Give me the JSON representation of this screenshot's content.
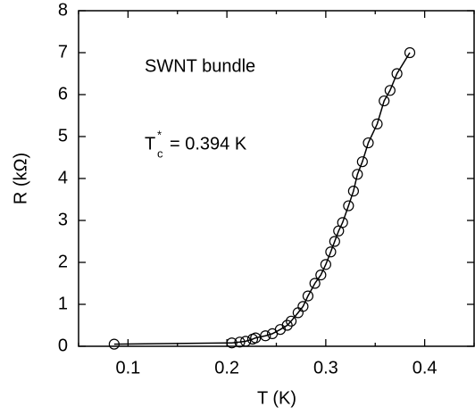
{
  "chart_data": {
    "type": "scatter",
    "x_label": "T (K)",
    "y_label": "R (kΩ)",
    "annotation": "SWNT bundle",
    "tc_label": {
      "symbol": "T",
      "subscript": "c",
      "superscript": "*",
      "text": "= 0.394 K"
    },
    "xlim": [
      0.05,
      0.45
    ],
    "ylim": [
      0,
      8
    ],
    "xticks": [
      0.1,
      0.2,
      0.3,
      0.4
    ],
    "yticks": [
      0,
      1,
      2,
      3,
      4,
      5,
      6,
      7,
      8
    ],
    "xminorticks": [
      0.05,
      0.15,
      0.25,
      0.35,
      0.45
    ],
    "connect": true,
    "color": "#000000",
    "x": [
      0.086,
      0.205,
      0.213,
      0.219,
      0.226,
      0.229,
      0.239,
      0.246,
      0.254,
      0.261,
      0.265,
      0.272,
      0.277,
      0.282,
      0.289,
      0.295,
      0.3,
      0.305,
      0.309,
      0.313,
      0.317,
      0.323,
      0.328,
      0.332,
      0.337,
      0.343,
      0.352,
      0.359,
      0.365,
      0.372,
      0.385
    ],
    "values": [
      0.05,
      0.08,
      0.1,
      0.12,
      0.17,
      0.2,
      0.25,
      0.3,
      0.4,
      0.5,
      0.6,
      0.8,
      0.95,
      1.2,
      1.5,
      1.7,
      1.95,
      2.25,
      2.5,
      2.75,
      2.95,
      3.35,
      3.7,
      4.1,
      4.4,
      4.85,
      5.3,
      5.85,
      6.1,
      6.5,
      7.0
    ]
  }
}
